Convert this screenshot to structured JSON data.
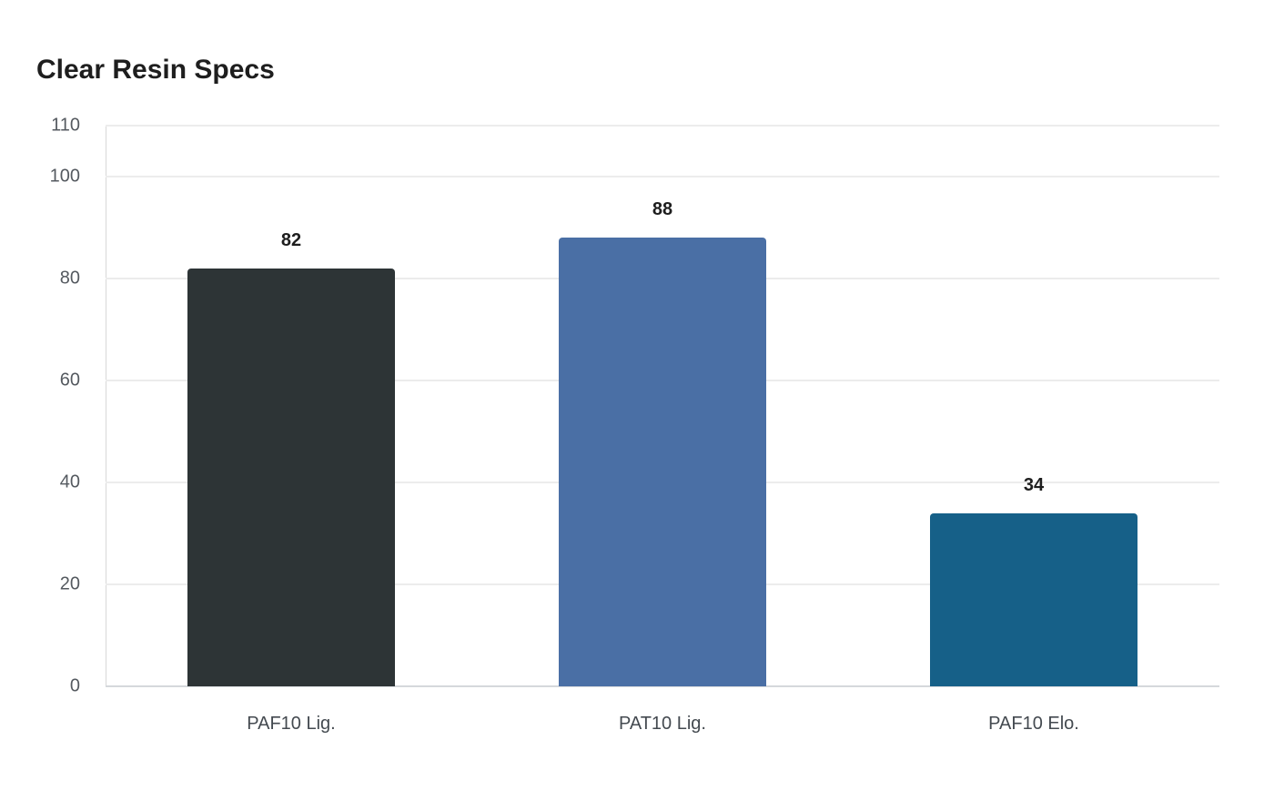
{
  "chart_data": {
    "type": "bar",
    "title": "Clear Resin Specs",
    "categories": [
      "PAF10 Lig.",
      "PAT10 Lig.",
      "PAF10 Elo."
    ],
    "values": [
      82,
      88,
      34
    ],
    "colors": [
      "#2d3436",
      "#4a6fa5",
      "#166088"
    ],
    "xlabel": "",
    "ylabel": "",
    "ylim": [
      0,
      110
    ],
    "yticks": [
      0,
      20,
      40,
      60,
      80,
      100,
      110
    ],
    "grid": true,
    "legend": null,
    "data_labels": [
      "82",
      "88",
      "34"
    ]
  }
}
